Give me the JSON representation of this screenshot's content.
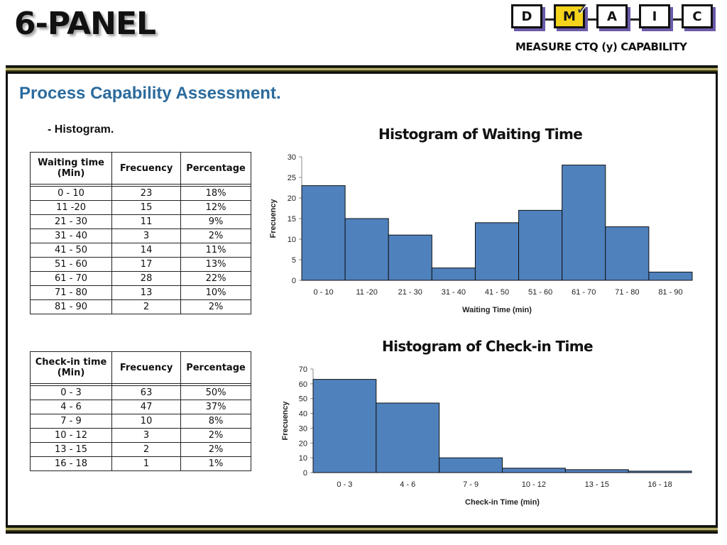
{
  "header": {
    "title": "6-PANEL",
    "dmaic": [
      "D",
      "M",
      "A",
      "I",
      "C"
    ],
    "active_step": "M",
    "check_icon": "checkmark-icon",
    "subtitle": "MEASURE CTQ (y) CAPABILITY"
  },
  "section": {
    "title": "Process Capability Assessment.",
    "histogram_label": "- Histogram."
  },
  "table_waiting": {
    "headers": [
      "Waiting time (Min)",
      "Frecuency",
      "Percentage"
    ],
    "rows": [
      [
        "0 - 10",
        "23",
        "18%"
      ],
      [
        "11 -20",
        "15",
        "12%"
      ],
      [
        "21 - 30",
        "11",
        "9%"
      ],
      [
        "31 - 40",
        "3",
        "2%"
      ],
      [
        "41 - 50",
        "14",
        "11%"
      ],
      [
        "51 - 60",
        "17",
        "13%"
      ],
      [
        "61 - 70",
        "28",
        "22%"
      ],
      [
        "71 - 80",
        "13",
        "10%"
      ],
      [
        "81 - 90",
        "2",
        "2%"
      ]
    ]
  },
  "table_checkin": {
    "headers": [
      "Check-in time (Min)",
      "Frecuency",
      "Percentage"
    ],
    "rows": [
      [
        "0 - 3",
        "63",
        "50%"
      ],
      [
        "4 - 6",
        "47",
        "37%"
      ],
      [
        "7 - 9",
        "10",
        "8%"
      ],
      [
        "10 - 12",
        "3",
        "2%"
      ],
      [
        "13 - 15",
        "2",
        "2%"
      ],
      [
        "16 - 18",
        "1",
        "1%"
      ]
    ]
  },
  "colors": {
    "bar_fill": "#4f81bd",
    "section_title": "#2c6b9d",
    "active_step": "#f3d31c"
  },
  "chart_data": [
    {
      "type": "bar",
      "title": "Histogram of Waiting Time",
      "categories": [
        "0 - 10",
        "11 -20",
        "21 - 30",
        "31 - 40",
        "41 - 50",
        "51 - 60",
        "61 - 70",
        "71 - 80",
        "81 - 90"
      ],
      "values": [
        23,
        15,
        11,
        3,
        14,
        17,
        28,
        13,
        2
      ],
      "xlabel": "Waiting Time (min)",
      "ylabel": "Frecuency",
      "ylim": [
        0,
        30
      ],
      "yticks": [
        0,
        5,
        10,
        15,
        20,
        25,
        30
      ]
    },
    {
      "type": "bar",
      "title": "Histogram of Check-in Time",
      "categories": [
        "0 - 3",
        "4 - 6",
        "7 - 9",
        "10 - 12",
        "13 - 15",
        "16 - 18"
      ],
      "values": [
        63,
        47,
        10,
        3,
        2,
        1
      ],
      "xlabel": "Check-in Time (min)",
      "ylabel": "Frecuency",
      "ylim": [
        0,
        70
      ],
      "yticks": [
        0,
        10,
        20,
        30,
        40,
        50,
        60,
        70
      ]
    }
  ]
}
